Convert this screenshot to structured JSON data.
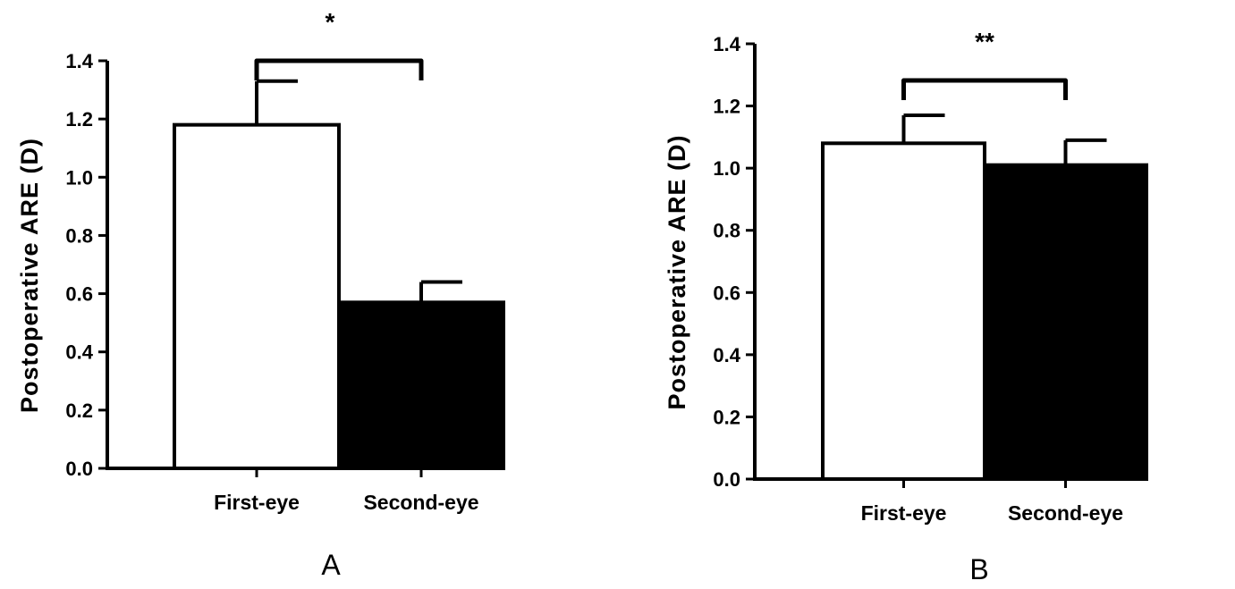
{
  "chart_data": [
    {
      "type": "bar",
      "panel_label": "A",
      "categories": [
        "First-eye",
        "Second-eye"
      ],
      "values": [
        1.18,
        0.57
      ],
      "errors": [
        0.15,
        0.07
      ],
      "bar_colors": [
        "#ffffff",
        "#000000"
      ],
      "ylabel": "Postoperative ARE (D)",
      "ylim": [
        0,
        1.4
      ],
      "yticks": [
        "0.0",
        "0.2",
        "0.4",
        "0.6",
        "0.8",
        "1.0",
        "1.2",
        "1.4"
      ],
      "significance": "*",
      "grid": false
    },
    {
      "type": "bar",
      "panel_label": "B",
      "categories": [
        "First-eye",
        "Second-eye"
      ],
      "values": [
        1.08,
        1.01
      ],
      "errors": [
        0.09,
        0.08
      ],
      "bar_colors": [
        "#ffffff",
        "#000000"
      ],
      "ylabel": "Postoperative ARE (D)",
      "ylim": [
        0,
        1.4
      ],
      "yticks": [
        "0.0",
        "0.2",
        "0.4",
        "0.6",
        "0.8",
        "1.0",
        "1.2",
        "1.4"
      ],
      "significance": "**",
      "grid": false
    }
  ]
}
